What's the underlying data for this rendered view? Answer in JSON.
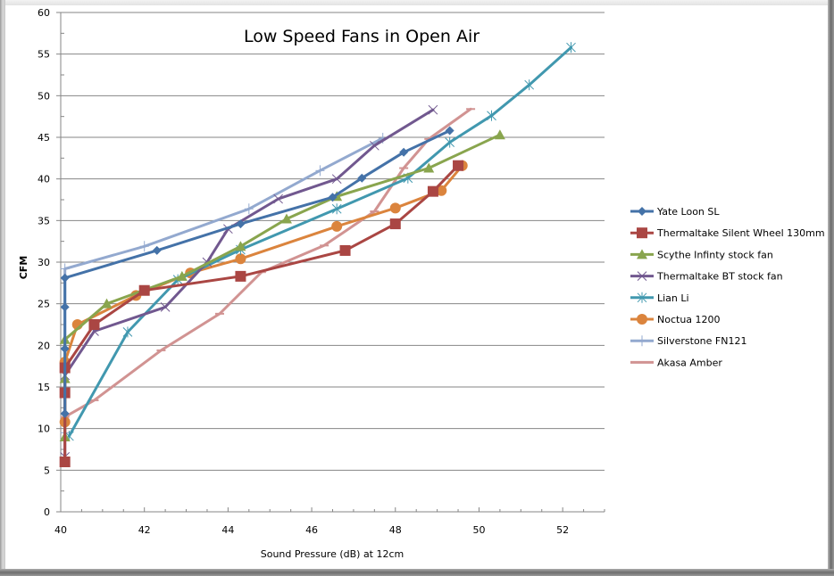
{
  "chart_data": {
    "type": "line",
    "title": "Low Speed Fans in Open Air",
    "xlabel": "Sound Pressure (dB) at 12cm",
    "ylabel": "CFM",
    "xlim": [
      40,
      53
    ],
    "ylim": [
      0,
      60
    ],
    "x_ticks": [
      "40",
      "42",
      "44",
      "46",
      "48",
      "50",
      "52"
    ],
    "y_ticks": [
      "0",
      "5",
      "10",
      "15",
      "20",
      "25",
      "30",
      "35",
      "40",
      "45",
      "50",
      "55",
      "60"
    ],
    "grid": "horizontal",
    "legend_position": "right",
    "series": [
      {
        "name": "Yate Loon SL",
        "color": "#4472A8",
        "marker": "diamond",
        "x": [
          40.1,
          40.1,
          40.1,
          40.1,
          42.3,
          44.3,
          46.5,
          47.2,
          48.2,
          49.3
        ],
        "y": [
          11.8,
          19.6,
          24.6,
          28.1,
          31.4,
          34.6,
          37.8,
          40.1,
          43.2,
          45.8
        ]
      },
      {
        "name": "Thermaltake Silent Wheel 130mm",
        "color": "#AA4643",
        "marker": "square",
        "x": [
          40.1,
          40.1,
          40.1,
          40.8,
          42.0,
          44.3,
          46.8,
          48.0,
          48.9,
          49.5
        ],
        "y": [
          6.0,
          14.3,
          17.3,
          22.5,
          26.6,
          28.3,
          31.4,
          34.6,
          38.5,
          41.6
        ]
      },
      {
        "name": "Scythe Infinty stock fan",
        "color": "#89A54E",
        "marker": "triangle",
        "x": [
          40.1,
          40.1,
          40.1,
          41.1,
          42.9,
          44.3,
          45.4,
          46.6,
          48.8,
          50.5
        ],
        "y": [
          9.0,
          16.0,
          20.7,
          25.0,
          28.3,
          31.9,
          35.2,
          37.9,
          41.3,
          45.3
        ]
      },
      {
        "name": "Thermaltake BT stock fan",
        "color": "#71588F",
        "marker": "x",
        "x": [
          40.1,
          40.1,
          40.8,
          42.5,
          43.5,
          44.0,
          45.2,
          46.6,
          47.5,
          48.9
        ],
        "y": [
          6.6,
          16.4,
          21.7,
          24.6,
          30.0,
          34.0,
          37.6,
          40.0,
          44.0,
          48.3
        ]
      },
      {
        "name": "Lian Li",
        "color": "#4198AF",
        "marker": "star",
        "x": [
          40.2,
          41.6,
          42.8,
          44.3,
          46.6,
          48.3,
          49.3,
          50.3,
          51.2,
          52.2
        ],
        "y": [
          9.1,
          21.6,
          27.9,
          31.5,
          36.4,
          40.1,
          44.4,
          47.6,
          51.3,
          55.8
        ]
      },
      {
        "name": "Noctua 1200",
        "color": "#DB843D",
        "marker": "circle",
        "x": [
          40.1,
          40.1,
          40.4,
          41.8,
          43.1,
          44.3,
          46.6,
          48.0,
          49.1,
          49.6
        ],
        "y": [
          10.8,
          18.0,
          22.5,
          26.0,
          28.7,
          30.4,
          34.3,
          36.5,
          38.6,
          41.6
        ]
      },
      {
        "name": "Silverstone FN121",
        "color": "#93A9CF",
        "marker": "plus",
        "x": [
          40.1,
          40.1,
          42.0,
          44.5,
          46.2,
          47.7
        ],
        "y": [
          9.5,
          29.2,
          31.9,
          36.4,
          41.0,
          44.9
        ]
      },
      {
        "name": "Akasa Amber",
        "color": "#D19392",
        "marker": "dash",
        "x": [
          40.1,
          40.8,
          42.4,
          43.8,
          44.8,
          46.3,
          47.5,
          48.2,
          48.8,
          49.8
        ],
        "y": [
          11.4,
          13.4,
          19.4,
          23.8,
          28.8,
          32.0,
          36.1,
          41.3,
          44.8,
          48.4
        ]
      }
    ]
  }
}
